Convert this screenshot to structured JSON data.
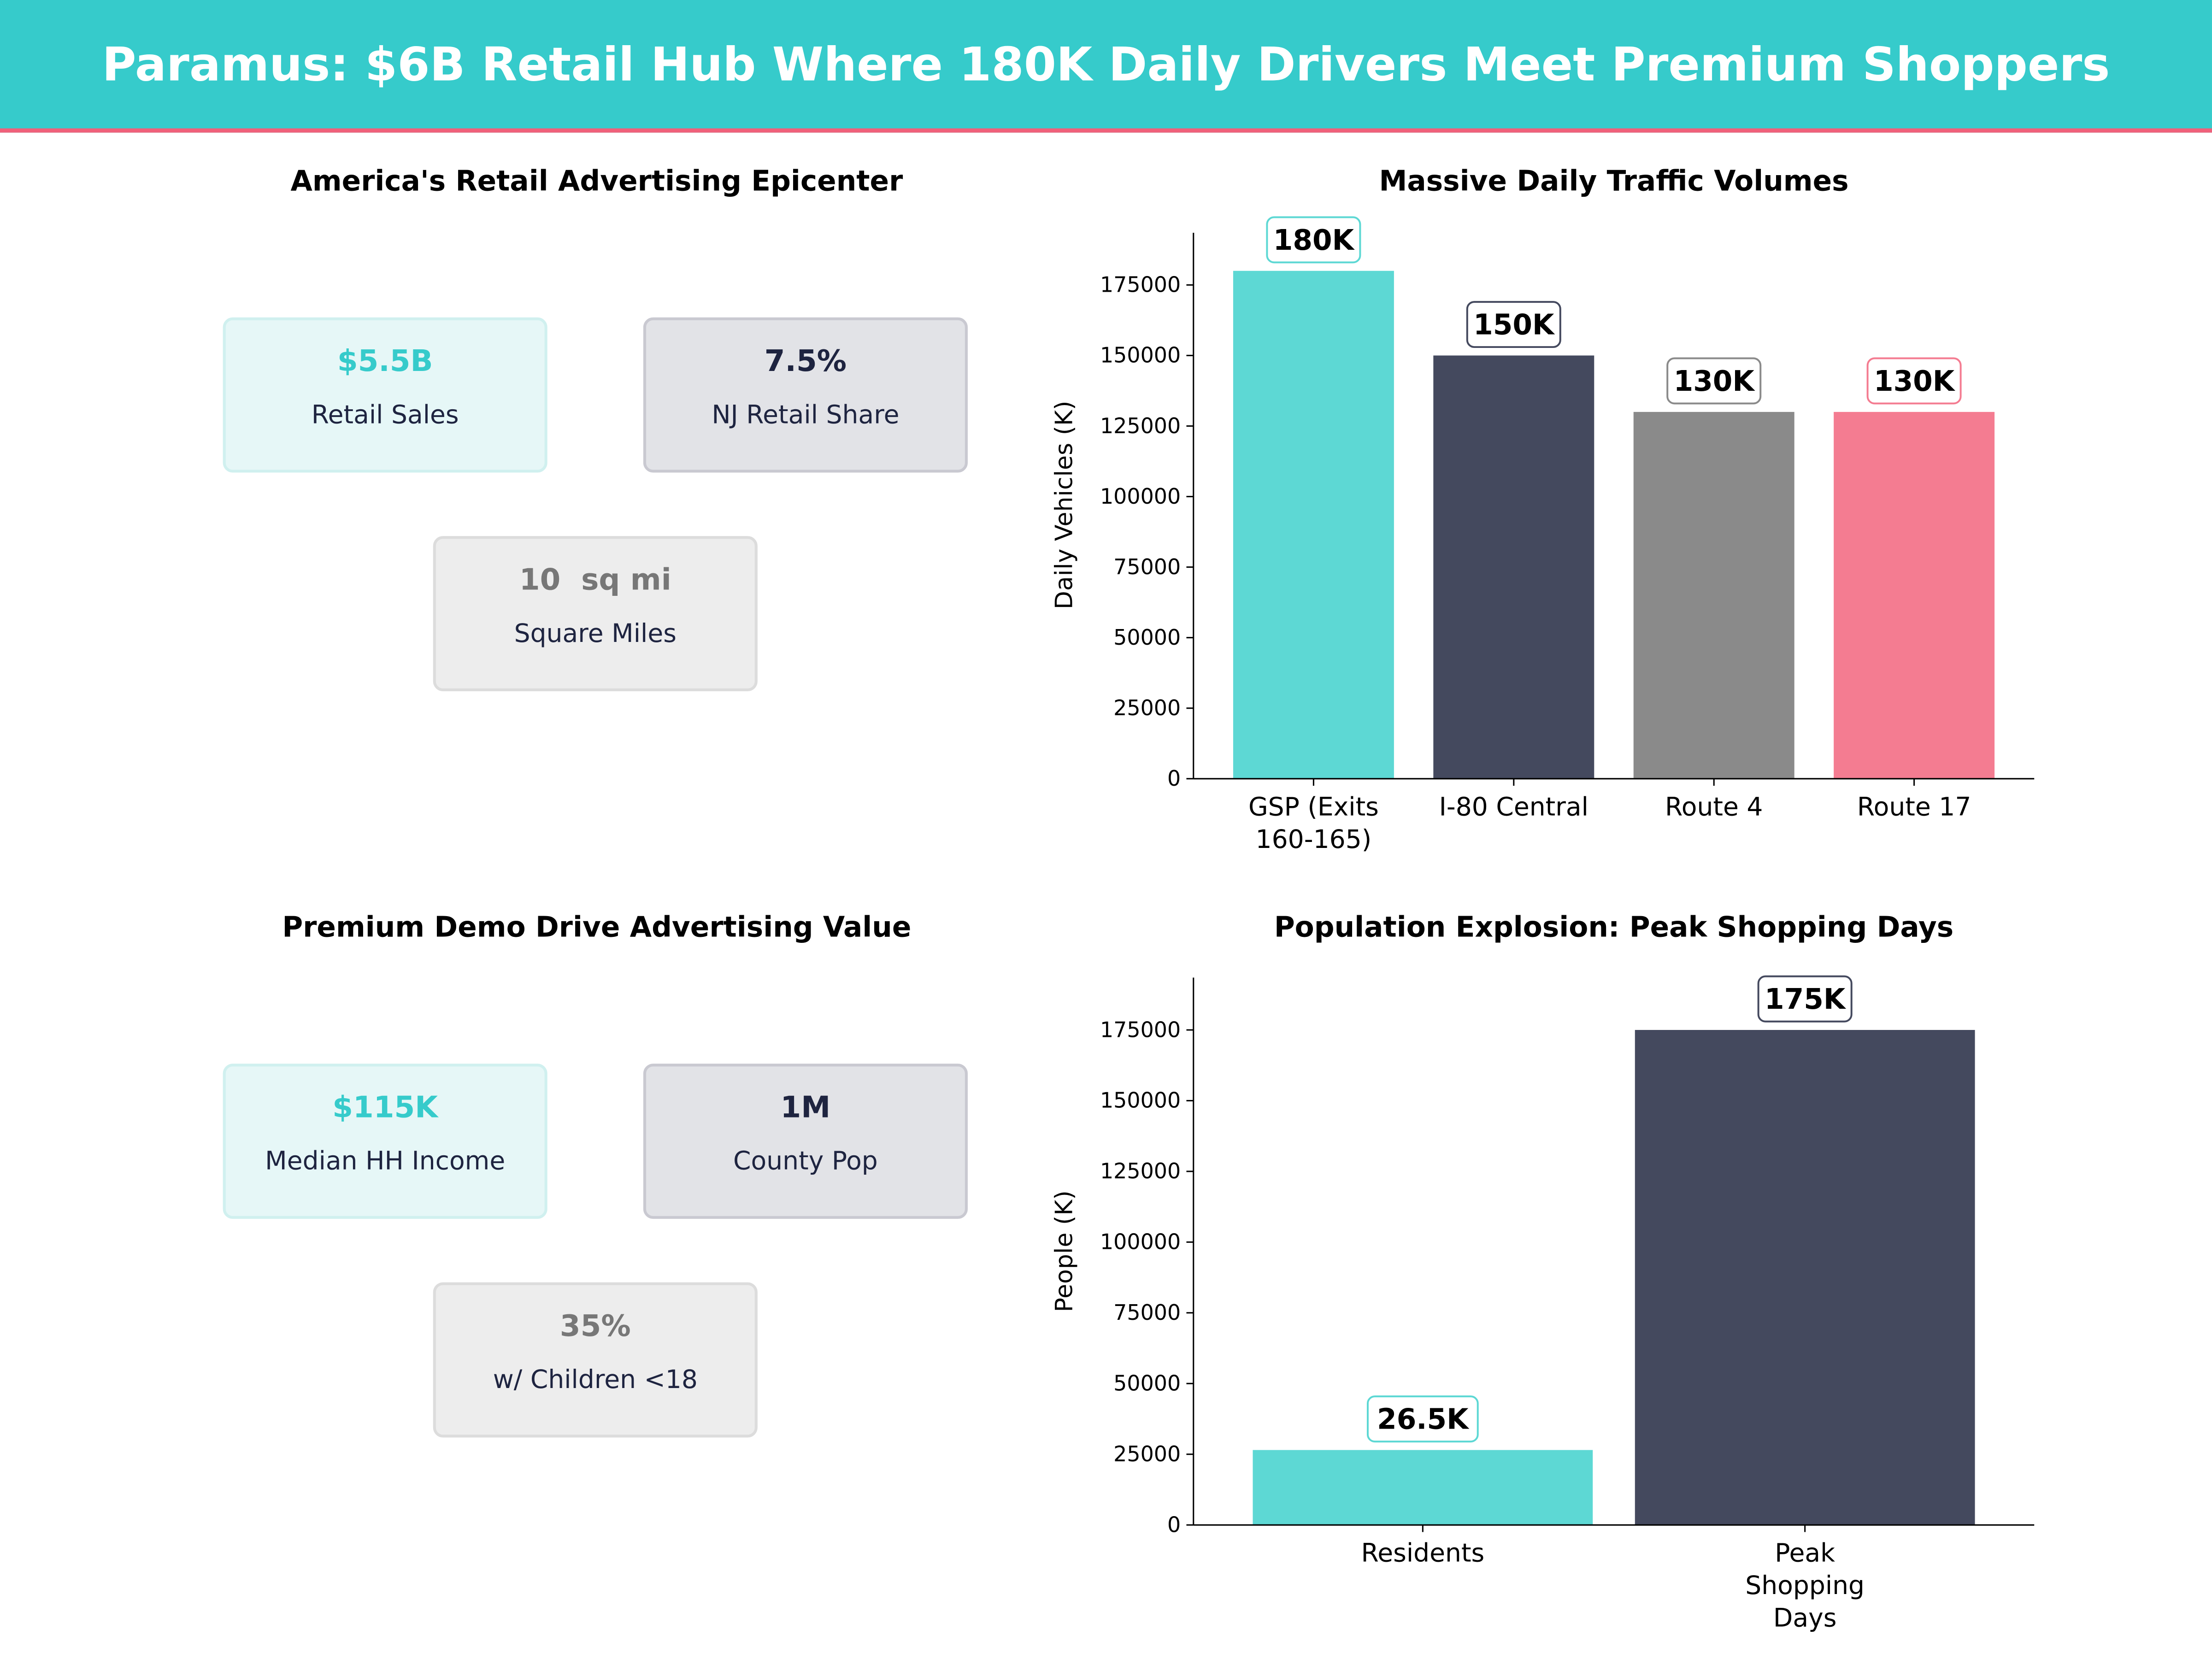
{
  "header": {
    "title": "Paramus: $6B Retail Hub Where 180K Daily Drivers Meet Premium Shoppers"
  },
  "panel1": {
    "title": "America's Retail Advertising Epicenter",
    "cards": [
      {
        "value": "$5.5B",
        "label": "Retail Sales"
      },
      {
        "value": "7.5%",
        "label": "NJ Retail Share"
      },
      {
        "value": "10  sq mi",
        "label": "Square Miles"
      }
    ]
  },
  "panel3": {
    "title": "Premium Demo Drive Advertising Value",
    "cards": [
      {
        "value": "$115K",
        "label": "Median HH Income"
      },
      {
        "value": "1M",
        "label": "County Pop"
      },
      {
        "value": "35%",
        "label": "w/ Children <18"
      }
    ]
  },
  "colors": {
    "teal": "#5DD8D4",
    "dark": "#44495E",
    "gray": "#8A8A8A",
    "pink": "#F47C91"
  },
  "chart_data": [
    {
      "type": "bar",
      "title": "Massive Daily Traffic Volumes",
      "xlabel": "",
      "ylabel": "Daily Vehicles (K)",
      "categories": [
        "GSP (Exits\n160-165)",
        "I-80 Central",
        "Route 4",
        "Route 17"
      ],
      "values": [
        180000,
        150000,
        130000,
        130000
      ],
      "data_labels": [
        "180K",
        "150K",
        "130K",
        "130K"
      ],
      "bar_colors": [
        "#5DD8D4",
        "#44495E",
        "#8A8A8A",
        "#F47C91"
      ],
      "yticks": [
        0,
        25000,
        50000,
        75000,
        100000,
        125000,
        150000,
        175000
      ],
      "ylim": [
        0,
        193500
      ],
      "grid": false
    },
    {
      "type": "bar",
      "title": "Population Explosion: Peak Shopping Days",
      "xlabel": "",
      "ylabel": "People (K)",
      "categories": [
        "Residents",
        "Peak\nShopping\nDays"
      ],
      "values": [
        26500,
        175000
      ],
      "data_labels": [
        "26.5K",
        "175K"
      ],
      "bar_colors": [
        "#5DD8D4",
        "#44495E"
      ],
      "yticks": [
        0,
        25000,
        50000,
        75000,
        100000,
        125000,
        150000,
        175000
      ],
      "ylim": [
        0,
        193500
      ],
      "grid": false
    }
  ]
}
